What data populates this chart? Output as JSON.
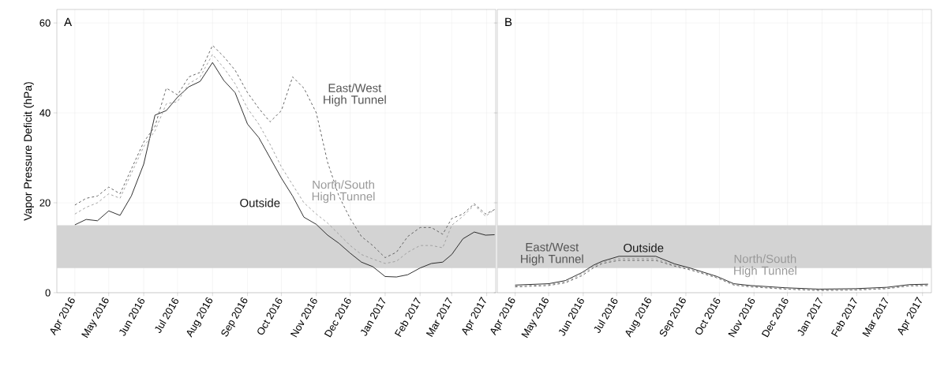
{
  "chart_data": [
    {
      "type": "line",
      "title": "A",
      "ylabel": "Vapor Pressure Deficit (hPa)",
      "x": [
        "2016-04-01",
        "2016-04-11",
        "2016-04-21",
        "2016-05-01",
        "2016-05-11",
        "2016-05-21",
        "2016-06-01",
        "2016-06-11",
        "2016-06-21",
        "2016-07-01",
        "2016-07-11",
        "2016-07-21",
        "2016-08-01",
        "2016-08-11",
        "2016-08-21",
        "2016-09-01",
        "2016-09-11",
        "2016-09-21",
        "2016-10-01",
        "2016-10-11",
        "2016-10-21",
        "2016-11-01",
        "2016-11-11",
        "2016-11-21",
        "2016-12-01",
        "2016-12-11",
        "2016-12-21",
        "2017-01-01",
        "2017-01-11",
        "2017-01-21",
        "2017-02-01",
        "2017-02-11",
        "2017-02-21",
        "2017-03-01",
        "2017-03-11",
        "2017-03-21",
        "2017-03-31",
        "2017-04-08"
      ],
      "series": [
        {
          "name": "Outside",
          "color": "#1a1a1a",
          "line_style": "solid",
          "values": [
            15.1,
            16.3,
            16.0,
            18.2,
            17.2,
            21.5,
            28.6,
            39.5,
            40.5,
            43.5,
            45.8,
            47.0,
            51.2,
            47.2,
            44.5,
            37.5,
            34.5,
            30.0,
            25.5,
            21.5,
            16.8,
            15.2,
            12.8,
            11.0,
            8.8,
            6.8,
            5.8,
            3.6,
            3.5,
            4.0,
            5.5,
            6.5,
            6.8,
            8.5,
            12.0,
            13.5,
            12.8,
            12.9
          ]
        },
        {
          "name": "East/West High Tunnel",
          "color": "#555555",
          "line_style": "dashed",
          "values": [
            19.5,
            21.0,
            21.5,
            23.5,
            22.0,
            27.5,
            33.5,
            37.0,
            45.5,
            44.0,
            48.0,
            49.0,
            55.0,
            52.5,
            49.5,
            44.5,
            41.0,
            38.0,
            40.5,
            48.0,
            45.5,
            40.0,
            29.0,
            21.5,
            16.5,
            12.5,
            10.5,
            7.8,
            9.0,
            12.5,
            14.5,
            14.5,
            13.0,
            16.5,
            17.5,
            19.8,
            17.5,
            18.5
          ]
        },
        {
          "name": "North/South High Tunnel",
          "color": "#999999",
          "line_style": "dashed",
          "values": [
            17.5,
            19.0,
            20.0,
            22.0,
            21.0,
            26.5,
            32.5,
            36.0,
            42.0,
            42.5,
            46.5,
            48.0,
            53.0,
            50.0,
            46.5,
            41.0,
            37.5,
            33.0,
            28.0,
            24.0,
            20.0,
            17.5,
            15.5,
            13.0,
            10.5,
            8.5,
            7.5,
            6.5,
            7.0,
            9.0,
            10.5,
            10.5,
            10.0,
            15.0,
            17.0,
            19.5,
            17.0,
            18.5
          ]
        }
      ],
      "bands": [
        {
          "axis": "y",
          "from": 5.5,
          "to": 15,
          "color": "#d3d3d3"
        }
      ],
      "xlim": [
        "2016-03-16",
        "2017-04-09"
      ],
      "ylim": [
        0,
        63
      ],
      "yticks": [
        0,
        20,
        40,
        60
      ],
      "xticks": [
        {
          "value": "2016-04-01",
          "label": "Apr 2016"
        },
        {
          "value": "2016-05-01",
          "label": "May 2016"
        },
        {
          "value": "2016-06-01",
          "label": "Jun 2016"
        },
        {
          "value": "2016-07-01",
          "label": "Jul 2016"
        },
        {
          "value": "2016-08-01",
          "label": "Aug 2016"
        },
        {
          "value": "2016-09-01",
          "label": "Sep 2016"
        },
        {
          "value": "2016-10-01",
          "label": "Oct 2016"
        },
        {
          "value": "2016-11-01",
          "label": "Nov 2016"
        },
        {
          "value": "2016-12-01",
          "label": "Dec 2016"
        },
        {
          "value": "2017-01-01",
          "label": "Jan 2017"
        },
        {
          "value": "2017-02-01",
          "label": "Feb 2017"
        },
        {
          "value": "2017-03-01",
          "label": "Mar 2017"
        },
        {
          "value": "2017-04-01",
          "label": "Apr 2017"
        }
      ],
      "grid": true,
      "legend": false
    },
    {
      "type": "line",
      "title": "B",
      "series": [
        {
          "name": "Outside",
          "color": "#1a1a1a",
          "line_style": "solid",
          "x": [
            "2016-04-01",
            "2016-05-01",
            "2016-05-16",
            "2016-05-31",
            "2016-06-10",
            "2016-06-18",
            "2016-07-03",
            "2016-08-05",
            "2016-08-22",
            "2016-09-06",
            "2016-09-29",
            "2016-10-14",
            "2016-10-29",
            "2016-11-29",
            "2016-12-29",
            "2017-01-31",
            "2017-02-28",
            "2017-03-20",
            "2017-04-06"
          ],
          "values": [
            1.7,
            2.0,
            2.7,
            4.5,
            6.1,
            7.0,
            8.1,
            8.1,
            6.4,
            5.4,
            3.6,
            2.0,
            1.6,
            1.1,
            0.8,
            0.9,
            1.2,
            1.8,
            1.9
          ]
        },
        {
          "name": "East/West High Tunnel",
          "color": "#555555",
          "line_style": "dashed",
          "x": [
            "2016-04-01",
            "2016-05-01",
            "2016-05-16",
            "2016-05-31",
            "2016-06-10",
            "2016-06-18",
            "2016-07-03",
            "2016-08-05",
            "2016-08-22",
            "2016-09-06",
            "2016-09-29",
            "2016-10-14",
            "2016-10-29",
            "2016-11-29",
            "2016-12-29",
            "2017-01-31",
            "2017-02-28",
            "2017-03-20",
            "2017-04-06"
          ],
          "values": [
            1.3,
            1.6,
            2.2,
            3.8,
            5.5,
            6.5,
            7.2,
            7.2,
            5.9,
            5.0,
            3.3,
            1.7,
            1.3,
            0.8,
            0.5,
            0.6,
            0.9,
            1.5,
            1.6
          ]
        },
        {
          "name": "North/South High Tunnel",
          "color": "#999999",
          "line_style": "dashed",
          "x": [
            "2016-04-01",
            "2016-05-01",
            "2016-05-16",
            "2016-05-31",
            "2016-06-10",
            "2016-06-18",
            "2016-07-03",
            "2016-08-05",
            "2016-08-22",
            "2016-09-06",
            "2016-09-29",
            "2016-10-14",
            "2016-10-29",
            "2016-11-29",
            "2016-12-29",
            "2017-01-31",
            "2017-02-28",
            "2017-03-20",
            "2017-04-06"
          ],
          "values": [
            1.5,
            1.8,
            2.4,
            4.2,
            5.8,
            6.8,
            7.6,
            7.6,
            6.1,
            5.2,
            3.4,
            1.8,
            1.4,
            0.9,
            0.6,
            0.7,
            1.0,
            1.6,
            1.7
          ]
        }
      ],
      "bands": [
        {
          "axis": "y",
          "from": 5.5,
          "to": 15,
          "color": "#d3d3d3"
        }
      ],
      "xlim": [
        "2016-03-16",
        "2017-04-09"
      ],
      "ylim": [
        0,
        63
      ],
      "yticks": [
        0,
        20,
        40,
        60
      ],
      "xticks": [
        {
          "value": "2016-04-01",
          "label": "Apr 2016"
        },
        {
          "value": "2016-05-01",
          "label": "May 2016"
        },
        {
          "value": "2016-06-01",
          "label": "Jun 2016"
        },
        {
          "value": "2016-07-01",
          "label": "Jul 2016"
        },
        {
          "value": "2016-08-01",
          "label": "Aug 2016"
        },
        {
          "value": "2016-09-01",
          "label": "Sep 2016"
        },
        {
          "value": "2016-10-01",
          "label": "Oct 2016"
        },
        {
          "value": "2016-11-01",
          "label": "Nov 2016"
        },
        {
          "value": "2016-12-01",
          "label": "Dec 2016"
        },
        {
          "value": "2017-01-01",
          "label": "Jan 2017"
        },
        {
          "value": "2017-02-01",
          "label": "Feb 2017"
        },
        {
          "value": "2017-03-01",
          "label": "Mar 2017"
        },
        {
          "value": "2017-04-01",
          "label": "Apr 2017"
        }
      ],
      "tick_labels": "x",
      "grid": true,
      "legend": false
    }
  ]
}
